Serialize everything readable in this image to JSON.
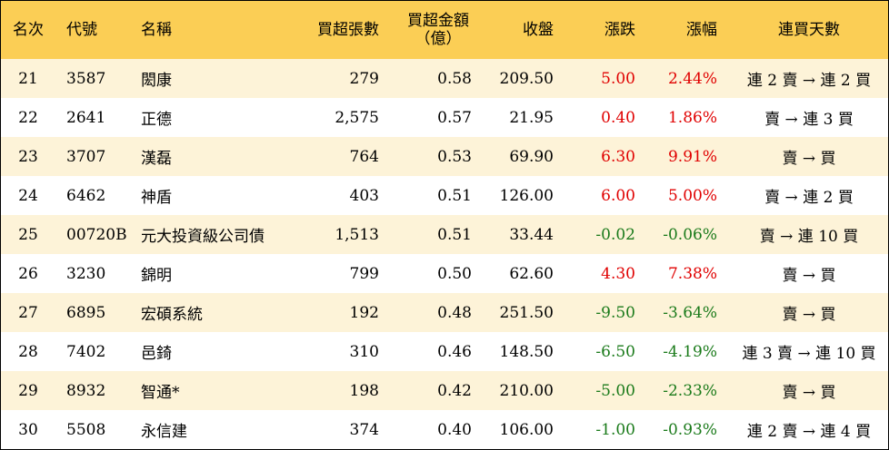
{
  "columns": {
    "rank": "名次",
    "code": "代號",
    "name": "名稱",
    "net_buy_shares": "買超張數",
    "net_buy_amount_line1": "買超金額",
    "net_buy_amount_line2": "（億）",
    "close": "收盤",
    "change": "漲跌",
    "change_pct": "漲幅",
    "streak": "連買天數"
  },
  "rows": [
    {
      "rank": "21",
      "code": "3587",
      "name": "閎康",
      "shares": "279",
      "amount": "0.58",
      "close": "209.50",
      "change": "5.00",
      "pct": "2.44%",
      "streak": "連 2 賣 → 連 2 買",
      "dir": "up"
    },
    {
      "rank": "22",
      "code": "2641",
      "name": "正德",
      "shares": "2,575",
      "amount": "0.57",
      "close": "21.95",
      "change": "0.40",
      "pct": "1.86%",
      "streak": "賣 → 連 3 買",
      "dir": "up"
    },
    {
      "rank": "23",
      "code": "3707",
      "name": "漢磊",
      "shares": "764",
      "amount": "0.53",
      "close": "69.90",
      "change": "6.30",
      "pct": "9.91%",
      "streak": "賣 → 買",
      "dir": "up"
    },
    {
      "rank": "24",
      "code": "6462",
      "name": "神盾",
      "shares": "403",
      "amount": "0.51",
      "close": "126.00",
      "change": "6.00",
      "pct": "5.00%",
      "streak": "賣 → 連 2 買",
      "dir": "up"
    },
    {
      "rank": "25",
      "code": "00720B",
      "name": "元大投資級公司債",
      "shares": "1,513",
      "amount": "0.51",
      "close": "33.44",
      "change": "-0.02",
      "pct": "-0.06%",
      "streak": "賣 → 連 10 買",
      "dir": "down"
    },
    {
      "rank": "26",
      "code": "3230",
      "name": "錦明",
      "shares": "799",
      "amount": "0.50",
      "close": "62.60",
      "change": "4.30",
      "pct": "7.38%",
      "streak": "賣 → 買",
      "dir": "up"
    },
    {
      "rank": "27",
      "code": "6895",
      "name": "宏碩系統",
      "shares": "192",
      "amount": "0.48",
      "close": "251.50",
      "change": "-9.50",
      "pct": "-3.64%",
      "streak": "賣 → 買",
      "dir": "down"
    },
    {
      "rank": "28",
      "code": "7402",
      "name": "邑錡",
      "shares": "310",
      "amount": "0.46",
      "close": "148.50",
      "change": "-6.50",
      "pct": "-4.19%",
      "streak": "連 3 賣 → 連 10 買",
      "dir": "down"
    },
    {
      "rank": "29",
      "code": "8932",
      "name": "智通*",
      "shares": "198",
      "amount": "0.42",
      "close": "210.00",
      "change": "-5.00",
      "pct": "-2.33%",
      "streak": "賣 → 買",
      "dir": "down"
    },
    {
      "rank": "30",
      "code": "5508",
      "name": "永信建",
      "shares": "374",
      "amount": "0.40",
      "close": "106.00",
      "change": "-1.00",
      "pct": "-0.93%",
      "streak": "連 2 賣 → 連 4 買",
      "dir": "down"
    }
  ],
  "colors": {
    "header_bg": "#fbce55",
    "odd_row_bg": "#fdf3d8",
    "even_row_bg": "#ffffff",
    "up": "#e00000",
    "down": "#1a7a1a"
  }
}
